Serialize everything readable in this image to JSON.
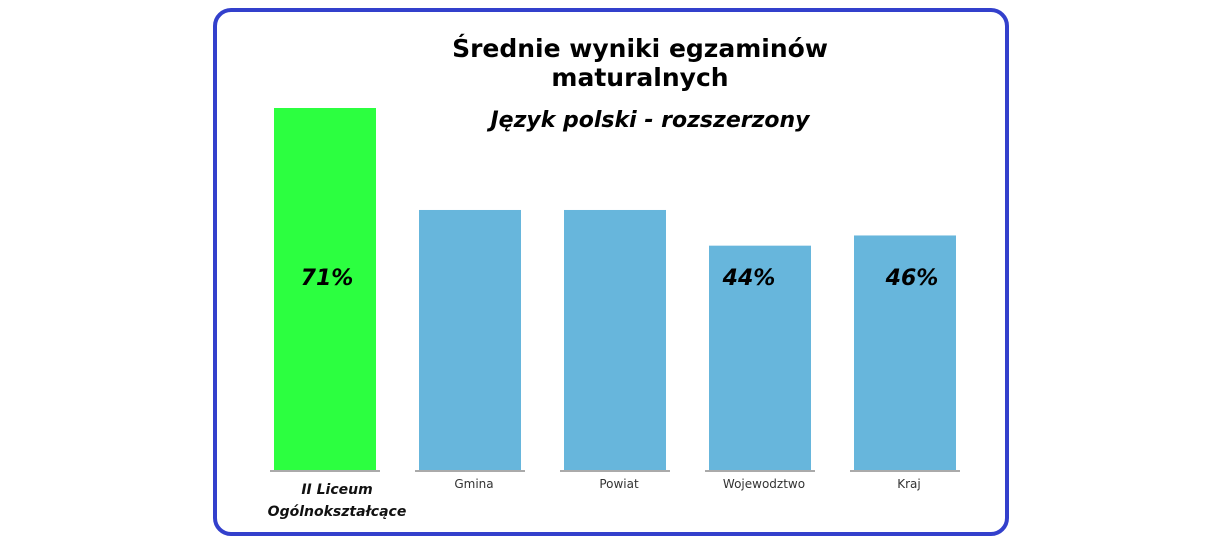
{
  "chart_data": {
    "type": "bar",
    "title": "Średnie wyniki egzaminów maturalnych",
    "subtitle": "Język polski - rozszerzony",
    "categories": [
      "II Liceum Ogólnokształcące",
      "Gmina",
      "Powiat",
      "Wojewodztwo",
      "Kraj"
    ],
    "values": [
      71,
      51,
      51,
      44,
      46
    ],
    "data_labels": [
      "71%",
      "",
      "",
      "44%",
      "46%"
    ],
    "colors": [
      "#2cff40",
      "#67b6dc",
      "#67b6dc",
      "#67b6dc",
      "#67b6dc"
    ],
    "ylim": [
      0,
      71
    ],
    "grid": false,
    "xlabel": "",
    "ylabel": ""
  }
}
